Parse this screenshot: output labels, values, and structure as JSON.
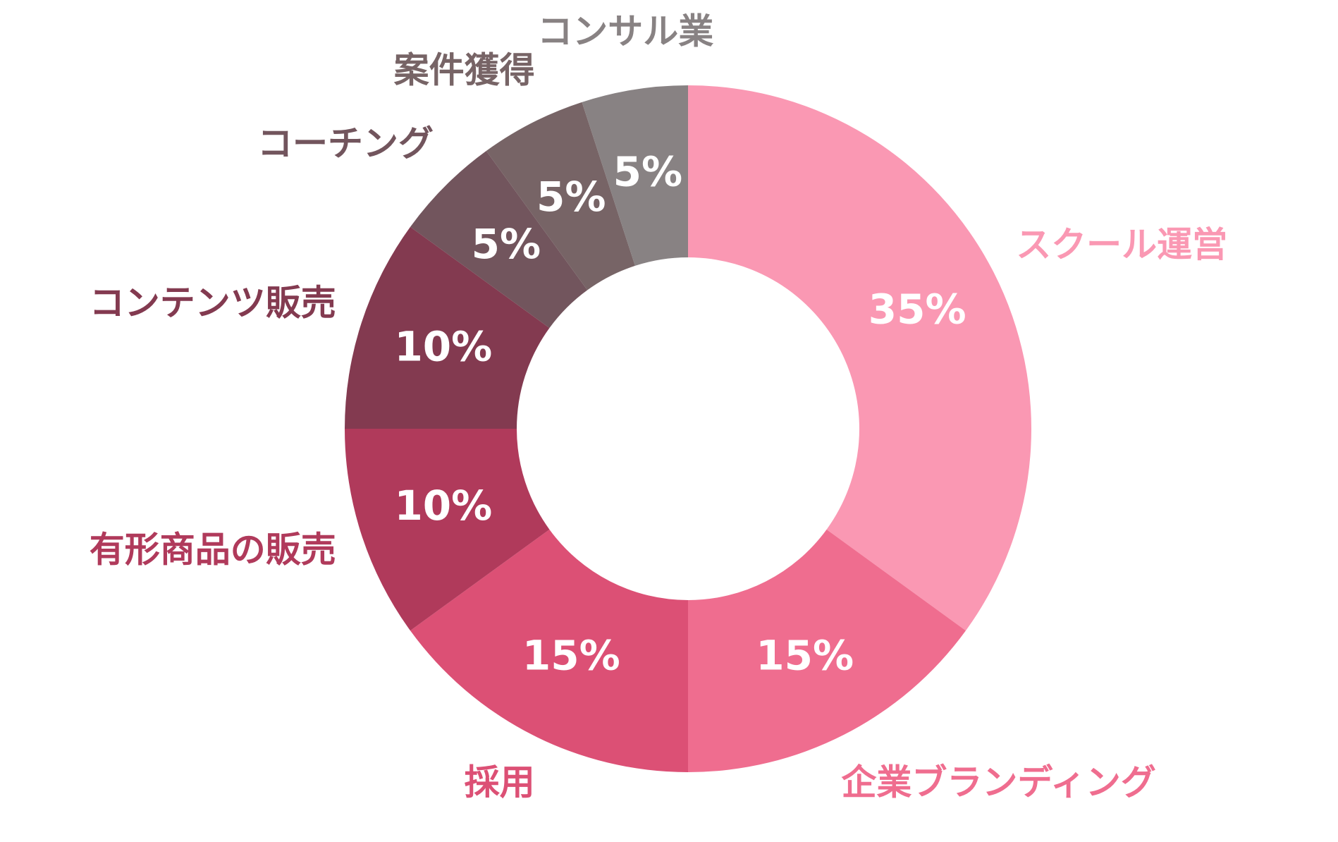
{
  "chart_data": {
    "type": "donut",
    "categories": [
      "スクール運営",
      "企業ブランディング",
      "採用",
      "有形商品の販売",
      "コンテンツ販売",
      "コーチング",
      "案件獲得",
      "コンサル業"
    ],
    "values": [
      35,
      15,
      15,
      10,
      10,
      5,
      5,
      5
    ],
    "value_labels": [
      "35%",
      "15%",
      "15%",
      "10%",
      "10%",
      "5%",
      "5%",
      "5%"
    ],
    "colors": [
      "#fa98b3",
      "#ef6d8f",
      "#dc5075",
      "#b03a5b",
      "#833a50",
      "#72555d",
      "#776466",
      "#888283"
    ]
  }
}
